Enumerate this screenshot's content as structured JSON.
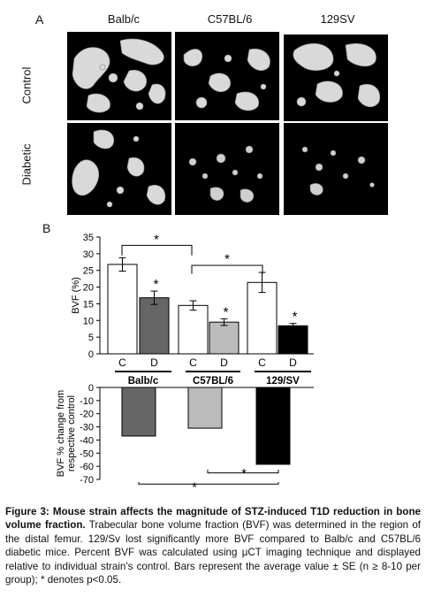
{
  "panel_a": {
    "label": "A",
    "strains": [
      "Balb/c",
      "C57BL/6",
      "129SV"
    ],
    "rows": [
      "Control",
      "Diabetic"
    ]
  },
  "panel_b": {
    "label": "B"
  },
  "chart_data": [
    {
      "type": "bar",
      "ylabel": "BVF (%)",
      "ylim": [
        0,
        35
      ],
      "yticks": [
        0,
        5,
        10,
        15,
        20,
        25,
        30,
        35
      ],
      "categories": [
        "C",
        "D",
        "C",
        "D",
        "C",
        "D"
      ],
      "groups": [
        "Balb/c",
        "C57BL/6",
        "129/SV"
      ],
      "values": [
        26.8,
        16.8,
        14.5,
        9.5,
        21.4,
        8.4
      ],
      "errors": [
        2.0,
        2.0,
        1.4,
        1.0,
        3.0,
        0.7
      ],
      "colors": [
        "#ffffff",
        "#666666",
        "#ffffff",
        "#bbbbbb",
        "#ffffff",
        "#000000"
      ],
      "significance": [
        "*",
        "*",
        "*",
        "*",
        "*"
      ]
    },
    {
      "type": "bar",
      "ylabel": "BVF % change from respective control",
      "ylim": [
        -70,
        0
      ],
      "yticks": [
        0,
        -10,
        -20,
        -30,
        -40,
        -50,
        -60,
        -70
      ],
      "categories": [
        "Balb/c",
        "C57BL/6",
        "129/SV"
      ],
      "values": [
        -37,
        -31,
        -58.5
      ],
      "colors": [
        "#666666",
        "#bbbbbb",
        "#000000"
      ],
      "significance": [
        "*",
        "*"
      ]
    }
  ],
  "caption": {
    "title": "Figure 3: Mouse strain affects the magnitude of STZ-induced T1D reduction in bone volume fraction.",
    "body": "Trabecular bone volume fraction (BVF) was determined in the region of the distal femur. 129/Sv lost significantly more BVF compared to Balb/c and C57BL/6 diabetic mice. Percent BVF was calculated using μCT imaging technique and displayed relative to individual strain's control. Bars represent the average value ± SE (n ≥ 8-10 per group); * denotes p<0.05."
  }
}
